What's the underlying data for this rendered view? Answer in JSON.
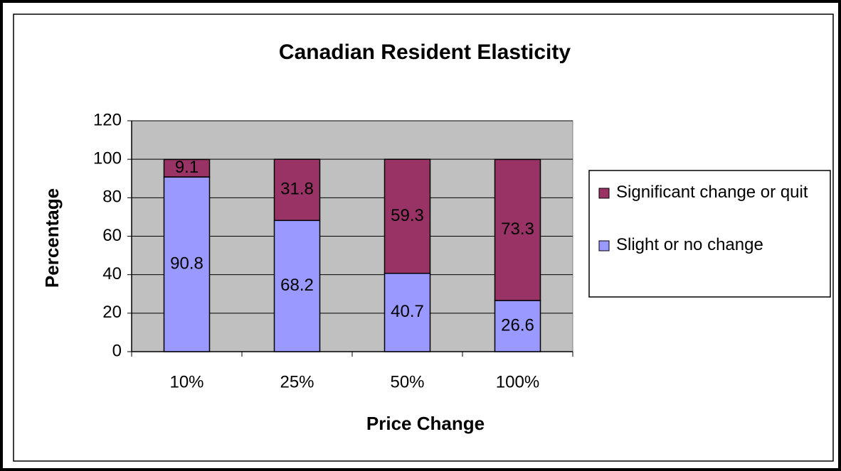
{
  "chart_data": {
    "type": "stacked_bar",
    "title": "Canadian Resident Elasticity",
    "x_label": "Price Change",
    "y_label": "Percentage",
    "categories": [
      "10%",
      "25%",
      "50%",
      "100%"
    ],
    "series": [
      {
        "name": "Slight or no change",
        "color": "#9999ff",
        "values": [
          90.8,
          68.2,
          40.7,
          26.6
        ]
      },
      {
        "name": "Significant change or quit",
        "color": "#993366",
        "values": [
          9.1,
          31.8,
          59.3,
          73.3
        ]
      }
    ],
    "ylim": [
      0,
      120
    ],
    "yticks": [
      0,
      20,
      40,
      60,
      80,
      100,
      120
    ],
    "grid": true,
    "legend": "right"
  }
}
